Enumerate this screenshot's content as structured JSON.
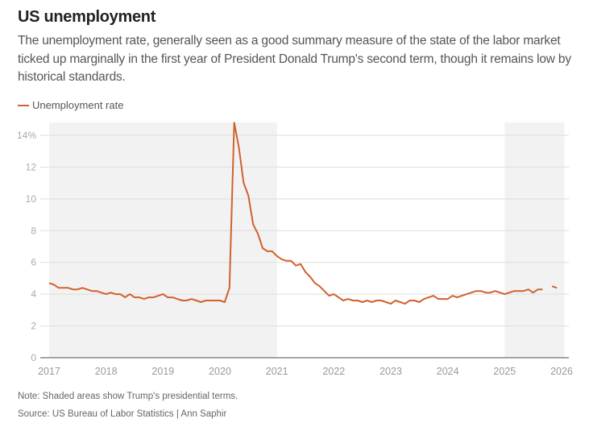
{
  "header": {
    "title": "US unemployment",
    "subtitle": "The unemployment rate, generally seen as a good summary measure of the state of the labor market ticked up marginally in the first year of President Donald Trump's second term, though it remains low by historical standards."
  },
  "footer": {
    "note": "Note: Shaded areas show Trump's presidential terms.",
    "source": "Source: US Bureau of Labor Statistics | Ann Saphir"
  },
  "colors": {
    "line": "#d0622e",
    "shade": "#f2f2f2",
    "grid": "#dddddd",
    "axis": "#888888",
    "tick_text": "#aaaaaa"
  },
  "chart_data": {
    "type": "line",
    "title": "US unemployment",
    "xlabel": "",
    "ylabel": "",
    "xlim": [
      2017,
      2026
    ],
    "ylim": [
      0,
      15
    ],
    "grid": true,
    "legend": "top-left",
    "y_ticks": [
      {
        "value": 0,
        "label": "0"
      },
      {
        "value": 2,
        "label": "2"
      },
      {
        "value": 4,
        "label": "4"
      },
      {
        "value": 6,
        "label": "6"
      },
      {
        "value": 8,
        "label": "8"
      },
      {
        "value": 10,
        "label": "10"
      },
      {
        "value": 12,
        "label": "12"
      },
      {
        "value": 14,
        "label": "14%"
      }
    ],
    "x_ticks": [
      {
        "value": 2017,
        "label": "2017"
      },
      {
        "value": 2018,
        "label": "2018"
      },
      {
        "value": 2019,
        "label": "2019"
      },
      {
        "value": 2020,
        "label": "2020"
      },
      {
        "value": 2021,
        "label": "2021"
      },
      {
        "value": 2022,
        "label": "2022"
      },
      {
        "value": 2023,
        "label": "2023"
      },
      {
        "value": 2024,
        "label": "2024"
      },
      {
        "value": 2025,
        "label": "2025"
      },
      {
        "value": 2026,
        "label": "2026"
      }
    ],
    "shaded_periods": [
      {
        "label": "Trump first term",
        "start": 2017.0,
        "end": 2021.0
      },
      {
        "label": "Trump second term",
        "start": 2025.0,
        "end": 2026.05
      }
    ],
    "series": [
      {
        "name": "Unemployment rate",
        "start": 2017.0,
        "step": 0.0833333,
        "values": [
          4.7,
          4.6,
          4.4,
          4.4,
          4.4,
          4.3,
          4.3,
          4.4,
          4.3,
          4.2,
          4.2,
          4.1,
          4.0,
          4.1,
          4.0,
          4.0,
          3.8,
          4.0,
          3.8,
          3.8,
          3.7,
          3.8,
          3.8,
          3.9,
          4.0,
          3.8,
          3.8,
          3.7,
          3.6,
          3.6,
          3.7,
          3.6,
          3.5,
          3.6,
          3.6,
          3.6,
          3.6,
          3.5,
          4.4,
          14.8,
          13.2,
          11.0,
          10.2,
          8.4,
          7.8,
          6.9,
          6.7,
          6.7,
          6.4,
          6.2,
          6.1,
          6.1,
          5.8,
          5.9,
          5.4,
          5.1,
          4.7,
          4.5,
          4.2,
          3.9,
          4.0,
          3.8,
          3.6,
          3.7,
          3.6,
          3.6,
          3.5,
          3.6,
          3.5,
          3.6,
          3.6,
          3.5,
          3.4,
          3.6,
          3.5,
          3.4,
          3.6,
          3.6,
          3.5,
          3.7,
          3.8,
          3.9,
          3.7,
          3.7,
          3.7,
          3.9,
          3.8,
          3.9,
          4.0,
          4.1,
          4.2,
          4.2,
          4.1,
          4.1,
          4.2,
          4.1,
          4.0,
          4.1,
          4.2,
          4.2,
          4.2,
          4.3,
          4.1,
          4.3,
          4.3,
          null,
          4.5,
          4.4
        ]
      }
    ]
  }
}
